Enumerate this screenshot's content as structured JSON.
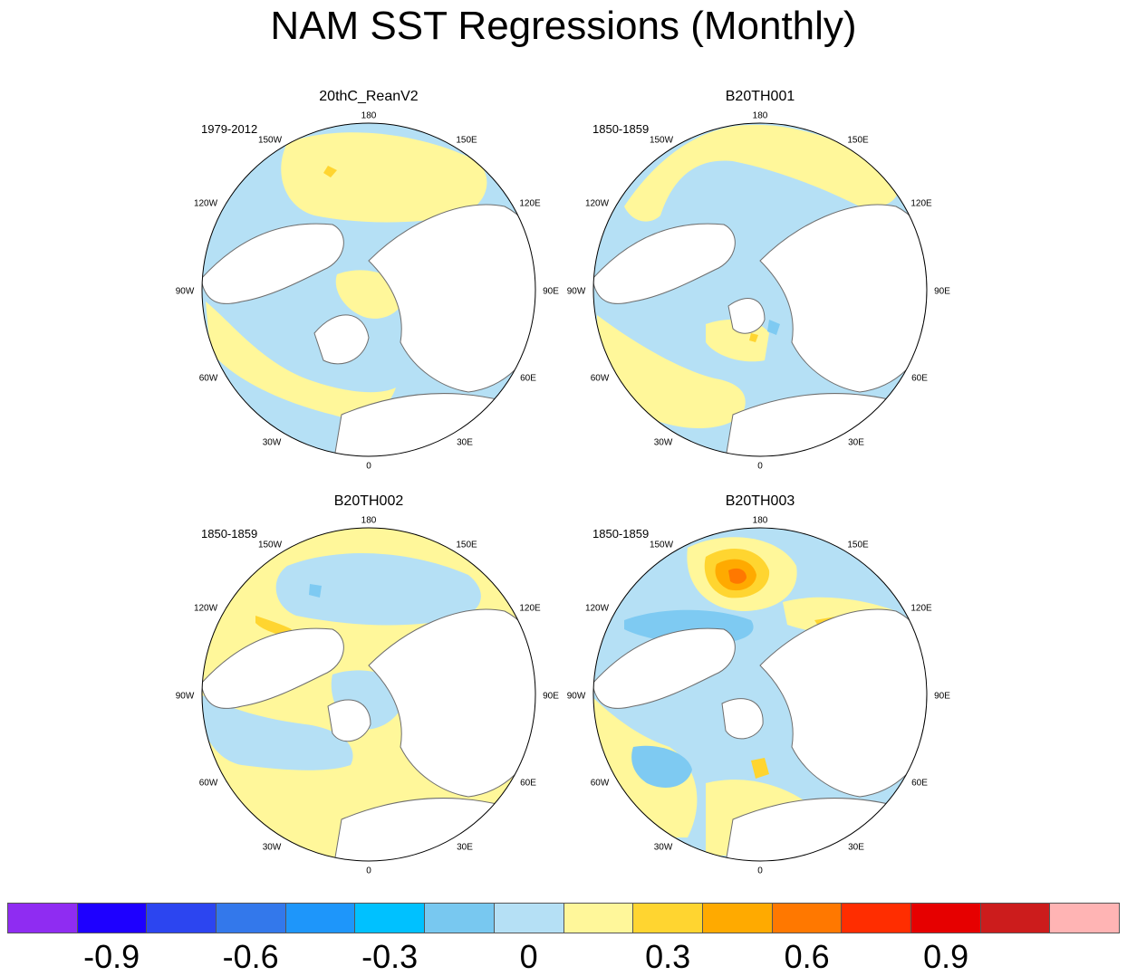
{
  "title": "NAM SST Regressions (Monthly)",
  "longitude_labels": [
    "180",
    "150E",
    "120E",
    "90E",
    "60E",
    "30E",
    "0",
    "30W",
    "60W",
    "90W",
    "120W",
    "150W"
  ],
  "panels": [
    {
      "name": "20thC_ReanV2",
      "period": "1979-2012"
    },
    {
      "name": "B20TH001",
      "period": "1850-1859"
    },
    {
      "name": "B20TH002",
      "period": "1850-1859"
    },
    {
      "name": "B20TH003",
      "period": "1850-1859"
    }
  ],
  "colors": {
    "land": "#ffffff",
    "coast": "#6e6e6e",
    "neg_weak": "#b5e0f5",
    "neg_mod": "#7ecaf2",
    "pos_weak": "#fff79a",
    "pos_mod": "#ffd530",
    "pos_strong": "#ffaa00",
    "pos_stronger": "#ff7800"
  },
  "colorbar": {
    "colors": [
      "#8f2cf2",
      "#1e00ff",
      "#2c45f0",
      "#3378eb",
      "#1e96fa",
      "#00c1ff",
      "#78c8f0",
      "#b5e0f5",
      "#fff79a",
      "#ffd530",
      "#ffaa00",
      "#ff7800",
      "#ff2d00",
      "#e60000",
      "#cc1c1c",
      "#ffb4b4"
    ],
    "labels": [
      "-0.9",
      "-0.6",
      "-0.3",
      "0",
      "0.3",
      "0.6",
      "0.9"
    ],
    "label_values": [
      -0.9,
      -0.6,
      -0.3,
      0,
      0.3,
      0.6,
      0.9
    ],
    "min": -1.05,
    "step": 0.15
  }
}
